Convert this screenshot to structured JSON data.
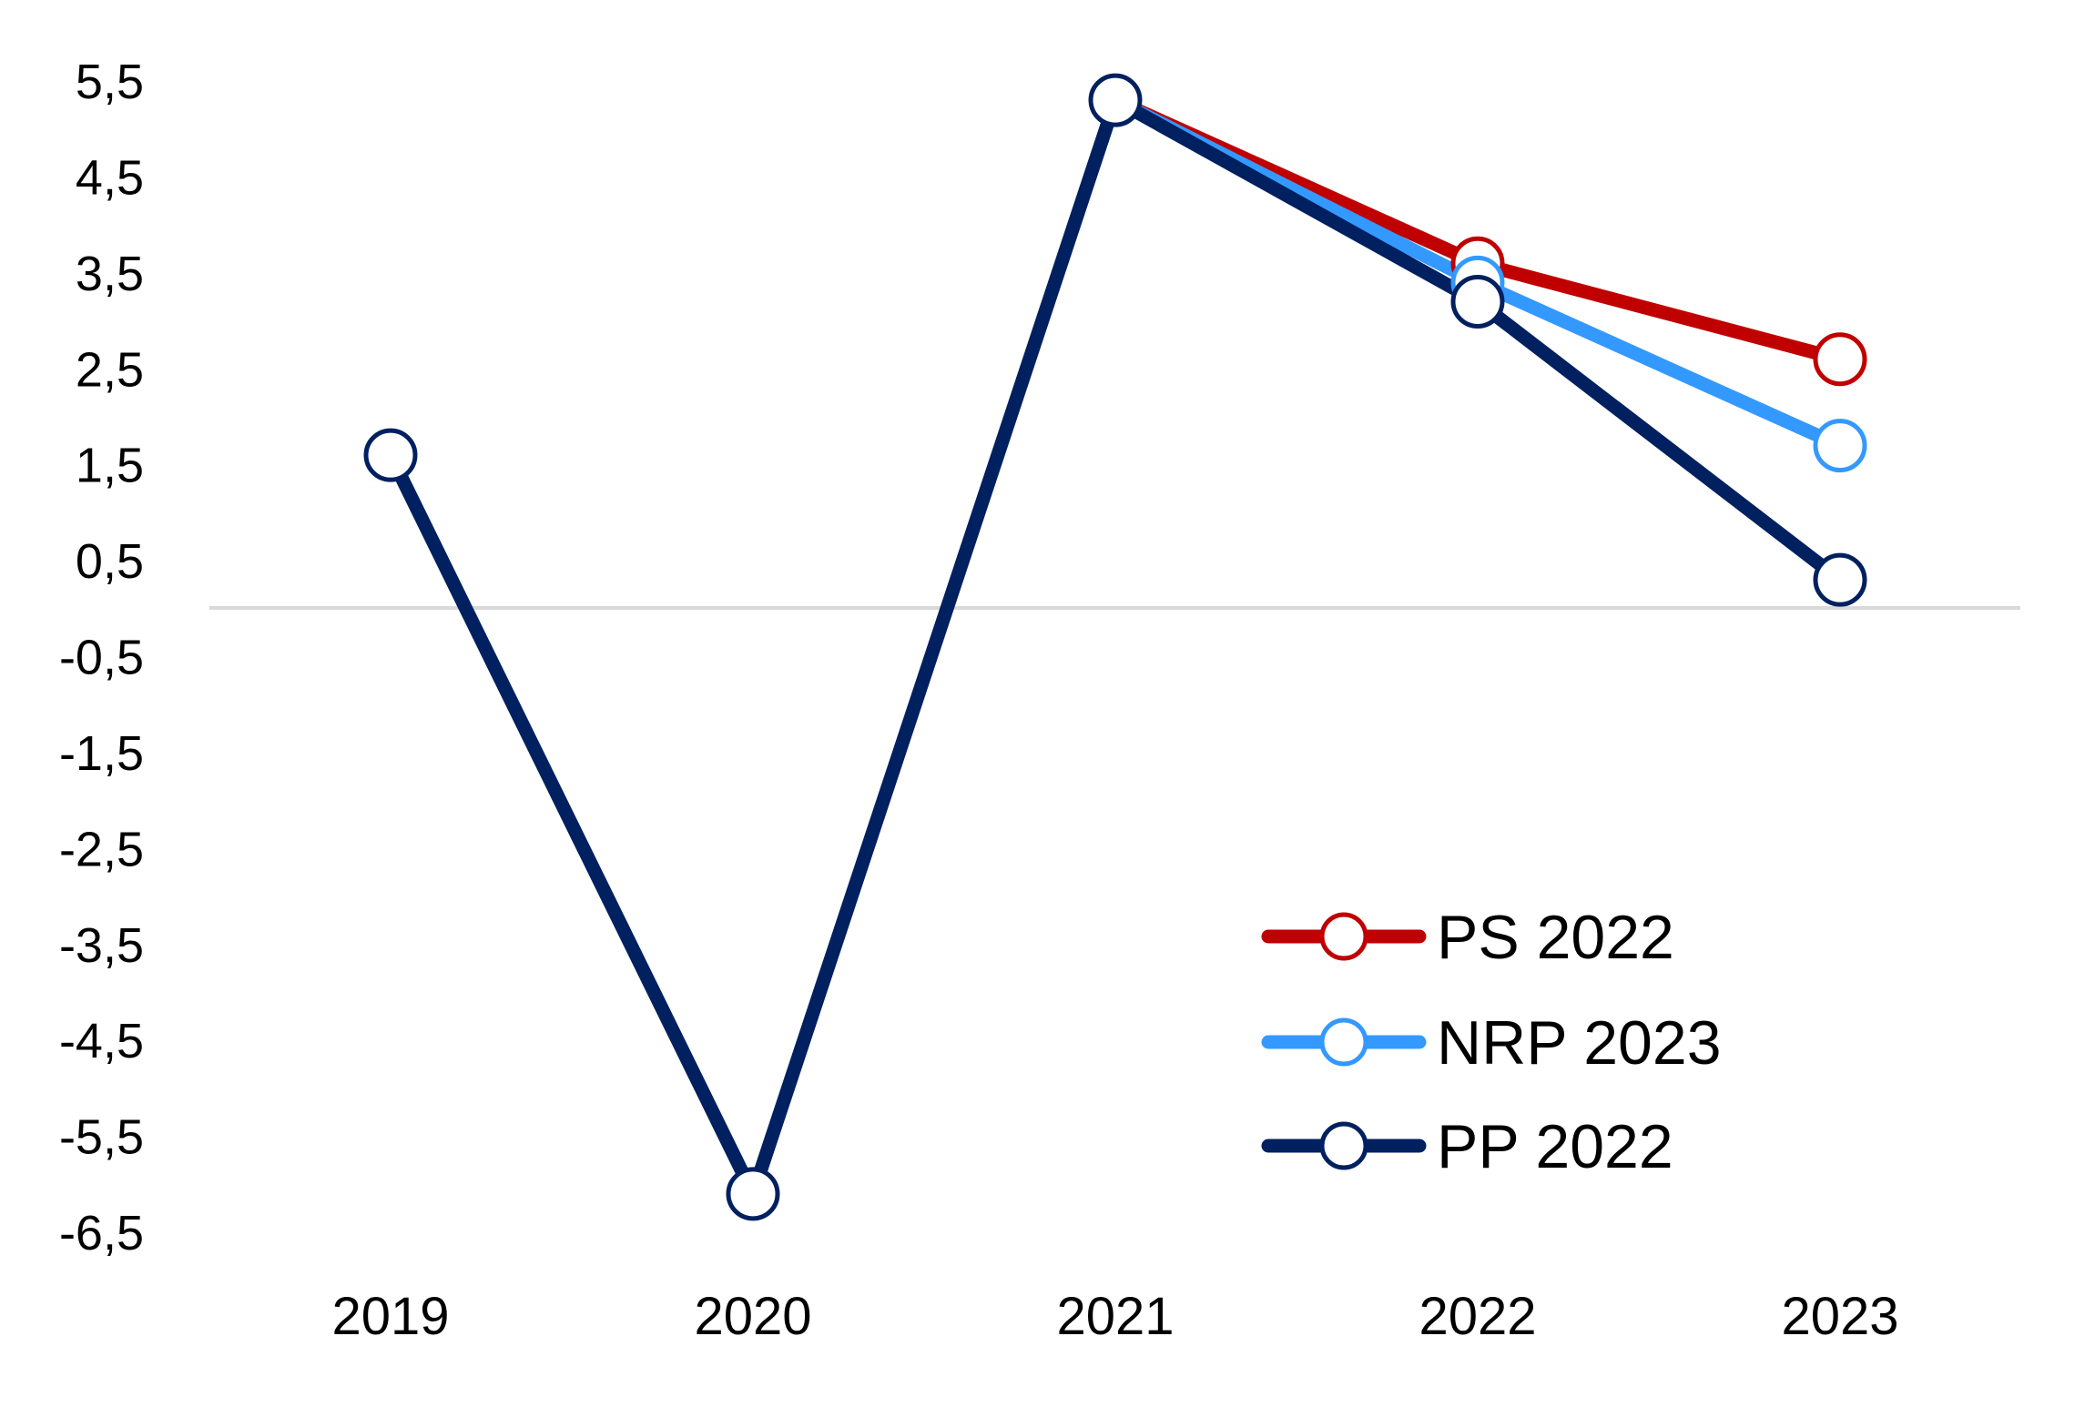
{
  "chart_data": {
    "type": "line",
    "title": "",
    "xlabel": "",
    "ylabel": "",
    "categories": [
      "2019",
      "2020",
      "2021",
      "2022",
      "2023"
    ],
    "ylim": [
      -6.5,
      5.5
    ],
    "yticks": [
      "5,5",
      "4,5",
      "3,5",
      "2,5",
      "1,5",
      "0,5",
      "-0,5",
      "-1,5",
      "-2,5",
      "-3,5",
      "-4,5",
      "-5,5",
      "-6,5"
    ],
    "ytick_values": [
      5.5,
      4.5,
      3.5,
      2.5,
      1.5,
      0.5,
      -0.5,
      -1.5,
      -2.5,
      -3.5,
      -4.5,
      -5.5,
      -6.5
    ],
    "grid": false,
    "zero_line": true,
    "legend_position": "bottom-right",
    "series": [
      {
        "name": "PS 2022",
        "color": "#C00000",
        "values": [
          null,
          null,
          5.3,
          3.6,
          2.6
        ]
      },
      {
        "name": "NRP 2023",
        "color": "#3399FF",
        "values": [
          null,
          null,
          5.3,
          3.4,
          1.7
        ]
      },
      {
        "name": "PP 2022",
        "color": "#002060",
        "values": [
          1.6,
          -6.1,
          5.3,
          3.2,
          0.3
        ]
      }
    ]
  }
}
